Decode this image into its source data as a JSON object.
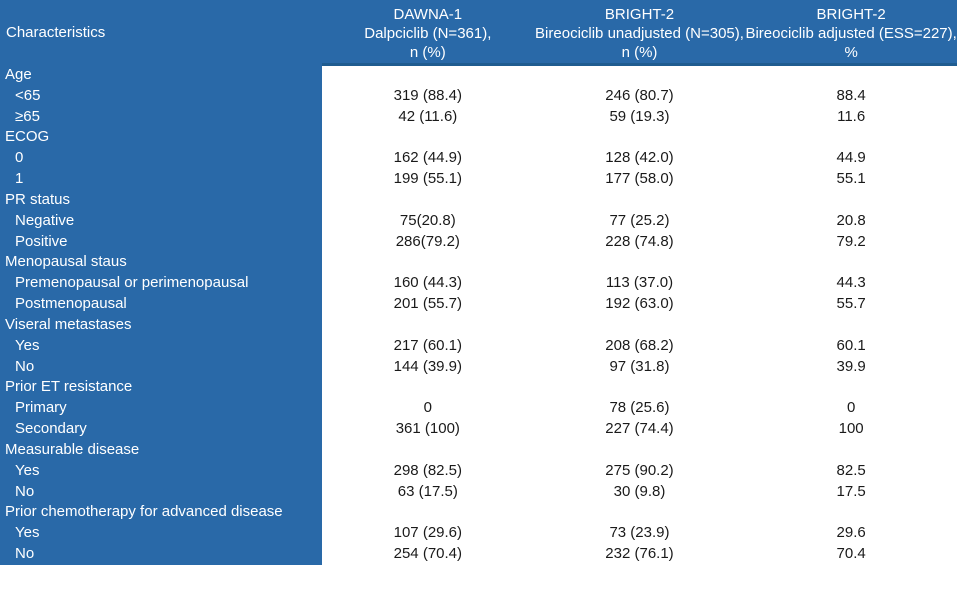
{
  "table": {
    "colors": {
      "blue": "#2969A8",
      "header_border": "#1F5C90",
      "data_text": "#1A1A1A",
      "header_text": "#FFFFFF"
    },
    "header": {
      "characteristics": "Characteristics",
      "columns": [
        {
          "line1": "DAWNA-1",
          "line2": "Dalpciclib (N=361),",
          "line3": "n (%)"
        },
        {
          "line1": "BRIGHT-2",
          "line2": "Bireociclib unadjusted (N=305),",
          "line3": "n (%)"
        },
        {
          "line1": "BRIGHT-2",
          "line2": "Bireociclib adjusted (ESS=227),",
          "line3": "%"
        }
      ]
    },
    "rows": [
      {
        "label": "Age",
        "indent": 0,
        "dawna1": "",
        "bright2_unadjusted": "",
        "bright2_adjusted": ""
      },
      {
        "label": "<65",
        "indent": 1,
        "dawna1": "319 (88.4)",
        "bright2_unadjusted": "246 (80.7)",
        "bright2_adjusted": "88.4"
      },
      {
        "label": "≥65",
        "indent": 1,
        "dawna1": "42 (11.6)",
        "bright2_unadjusted": "59 (19.3)",
        "bright2_adjusted": "11.6"
      },
      {
        "label": "ECOG",
        "indent": 0,
        "dawna1": "",
        "bright2_unadjusted": "",
        "bright2_adjusted": ""
      },
      {
        "label": "0",
        "indent": 1,
        "dawna1": "162 (44.9)",
        "bright2_unadjusted": "128 (42.0)",
        "bright2_adjusted": "44.9"
      },
      {
        "label": "1",
        "indent": 1,
        "dawna1": "199 (55.1)",
        "bright2_unadjusted": "177 (58.0)",
        "bright2_adjusted": "55.1"
      },
      {
        "label": "PR status",
        "indent": 0,
        "dawna1": "",
        "bright2_unadjusted": "",
        "bright2_adjusted": ""
      },
      {
        "label": "Negative",
        "indent": 1,
        "dawna1": "75(20.8)",
        "bright2_unadjusted": "77 (25.2)",
        "bright2_adjusted": "20.8"
      },
      {
        "label": "Positive",
        "indent": 1,
        "dawna1": "286(79.2)",
        "bright2_unadjusted": "228 (74.8)",
        "bright2_adjusted": "79.2"
      },
      {
        "label": "Menopausal staus",
        "indent": 0,
        "dawna1": "",
        "bright2_unadjusted": "",
        "bright2_adjusted": ""
      },
      {
        "label": "Premenopausal or perimenopausal",
        "indent": 1,
        "dawna1": "160 (44.3)",
        "bright2_unadjusted": "113 (37.0)",
        "bright2_adjusted": "44.3"
      },
      {
        "label": "Postmenopausal",
        "indent": 1,
        "dawna1": "201 (55.7)",
        "bright2_unadjusted": "192 (63.0)",
        "bright2_adjusted": "55.7"
      },
      {
        "label": "Viseral metastases",
        "indent": 0,
        "dawna1": "",
        "bright2_unadjusted": "",
        "bright2_adjusted": ""
      },
      {
        "label": "Yes",
        "indent": 1,
        "dawna1": "217 (60.1)",
        "bright2_unadjusted": "208 (68.2)",
        "bright2_adjusted": "60.1"
      },
      {
        "label": "No",
        "indent": 1,
        "dawna1": "144 (39.9)",
        "bright2_unadjusted": "97 (31.8)",
        "bright2_adjusted": "39.9"
      },
      {
        "label": "Prior ET resistance",
        "indent": 0,
        "dawna1": "",
        "bright2_unadjusted": "",
        "bright2_adjusted": ""
      },
      {
        "label": "Primary",
        "indent": 1,
        "dawna1": "0",
        "bright2_unadjusted": "78 (25.6)",
        "bright2_adjusted": "0"
      },
      {
        "label": "Secondary",
        "indent": 1,
        "dawna1": "361 (100)",
        "bright2_unadjusted": "227 (74.4)",
        "bright2_adjusted": "100"
      },
      {
        "label": "Measurable disease",
        "indent": 0,
        "dawna1": "",
        "bright2_unadjusted": "",
        "bright2_adjusted": ""
      },
      {
        "label": "Yes",
        "indent": 1,
        "dawna1": "298 (82.5)",
        "bright2_unadjusted": "275 (90.2)",
        "bright2_adjusted": "82.5"
      },
      {
        "label": "No",
        "indent": 1,
        "dawna1": "63 (17.5)",
        "bright2_unadjusted": "30 (9.8)",
        "bright2_adjusted": "17.5"
      },
      {
        "label": "Prior chemotherapy for advanced disease",
        "indent": 0,
        "dawna1": "",
        "bright2_unadjusted": "",
        "bright2_adjusted": ""
      },
      {
        "label": "Yes",
        "indent": 1,
        "dawna1": "107 (29.6)",
        "bright2_unadjusted": "73 (23.9)",
        "bright2_adjusted": "29.6"
      },
      {
        "label": "No",
        "indent": 1,
        "dawna1": "254 (70.4)",
        "bright2_unadjusted": "232 (76.1)",
        "bright2_adjusted": "70.4"
      }
    ]
  }
}
